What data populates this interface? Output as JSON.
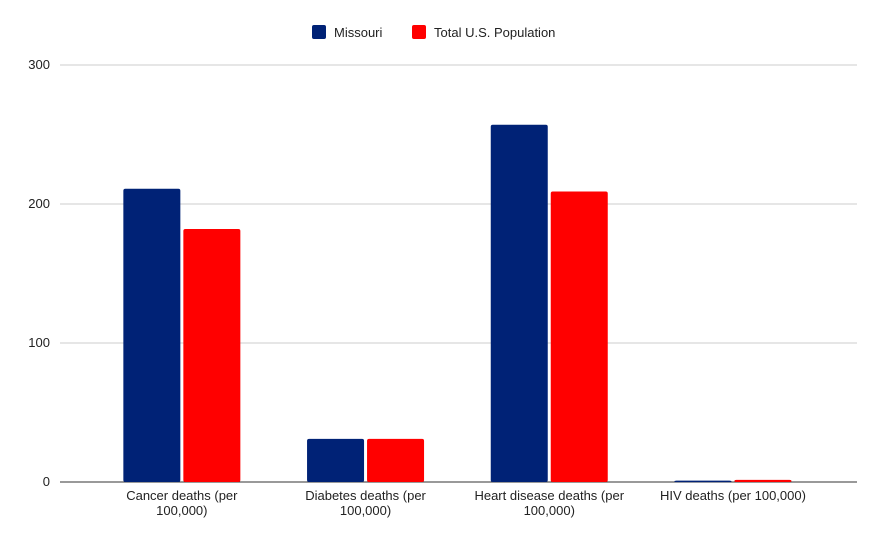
{
  "chart_data": {
    "type": "bar",
    "title": "",
    "xlabel": "",
    "ylabel": "",
    "categories": [
      [
        "Cancer deaths (per",
        "100,000)"
      ],
      [
        "Diabetes deaths (per",
        "100,000)"
      ],
      [
        "Heart disease deaths (per",
        "100,000)"
      ],
      [
        "HIV deaths (per 100,000)"
      ]
    ],
    "series": [
      {
        "name": "Missouri",
        "color": "#002276",
        "values": [
          211,
          31,
          257,
          1
        ]
      },
      {
        "name": "Total U.S. Population",
        "color": "#ff0000",
        "values": [
          182,
          31,
          209,
          1.5
        ]
      }
    ],
    "ylim": [
      0,
      300
    ],
    "yticks": [
      "0",
      "100",
      "200",
      "300"
    ],
    "grid": true,
    "legend_position": "top"
  }
}
